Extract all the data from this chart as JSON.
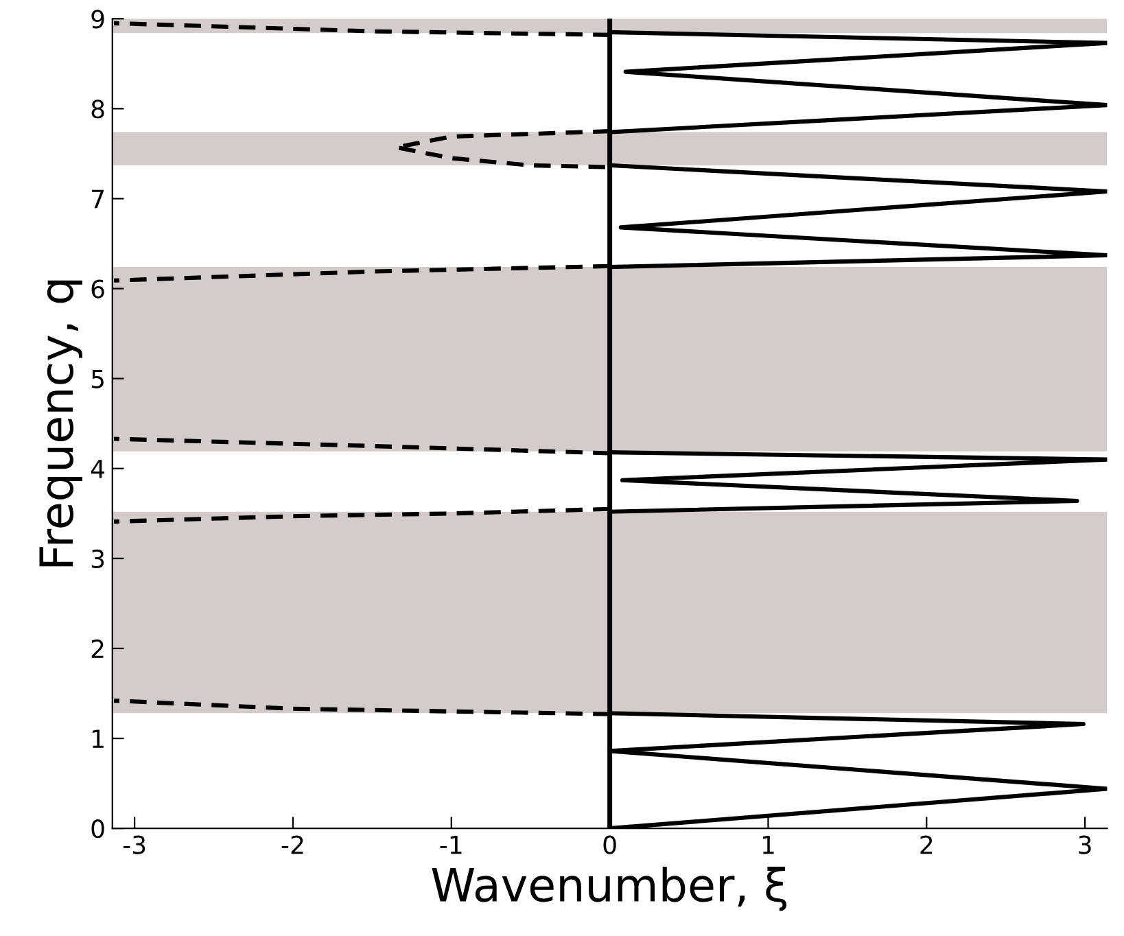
{
  "chart_data": {
    "type": "line",
    "xlabel": "Wavenumber, ξ",
    "ylabel": "Frequency, q",
    "xlim": [
      -3.14,
      3.14
    ],
    "ylim": [
      0,
      9
    ],
    "xticks": [
      -3,
      -2,
      -1,
      0,
      1,
      2,
      3
    ],
    "yticks": [
      0,
      1,
      2,
      3,
      4,
      5,
      6,
      7,
      8,
      9
    ],
    "grid": false,
    "legend": false,
    "marker": "none",
    "bands": [
      {
        "axis": "y",
        "from": 1.28,
        "to": 3.52,
        "color": "#d3ccca"
      },
      {
        "axis": "y",
        "from": 4.19,
        "to": 6.24,
        "color": "#d3ccca"
      },
      {
        "axis": "y",
        "from": 7.37,
        "to": 7.74,
        "color": "#d3ccca"
      },
      {
        "axis": "y",
        "from": 8.84,
        "to": 9.0,
        "color": "#d3ccca"
      }
    ],
    "ref_lines": [
      {
        "axis": "x",
        "value": 0,
        "color": "#000000",
        "line_style": "solid"
      }
    ],
    "series": [
      {
        "color": "#000000",
        "line_style": "solid",
        "x": [
          0,
          3.14,
          0,
          2.99,
          0
        ],
        "values": [
          0,
          0.44,
          0.86,
          1.16,
          1.28
        ]
      },
      {
        "color": "#000000",
        "line_style": "solid",
        "x": [
          0,
          2.95,
          0.08,
          3.14,
          0
        ],
        "values": [
          3.52,
          3.64,
          3.87,
          4.1,
          4.18
        ]
      },
      {
        "color": "#000000",
        "line_style": "solid",
        "x": [
          0,
          3.14,
          0.07,
          3.14,
          0
        ],
        "values": [
          6.24,
          6.37,
          6.68,
          7.08,
          7.37
        ]
      },
      {
        "color": "#000000",
        "line_style": "solid",
        "x": [
          0,
          3.14,
          0.1,
          3.14,
          0
        ],
        "values": [
          7.74,
          8.04,
          8.41,
          8.73,
          8.85
        ]
      },
      {
        "color": "#000000",
        "line_style": "dashed",
        "x": [
          0,
          -1,
          -2,
          -3.13
        ],
        "values": [
          1.27,
          1.3,
          1.33,
          1.42
        ]
      },
      {
        "color": "#000000",
        "line_style": "dashed",
        "x": [
          0,
          -1,
          -2,
          -3.13
        ],
        "values": [
          3.55,
          3.5,
          3.47,
          3.41
        ]
      },
      {
        "color": "#000000",
        "line_style": "dashed",
        "x": [
          0,
          -1.5,
          -3.13
        ],
        "values": [
          4.17,
          4.25,
          4.33
        ]
      },
      {
        "color": "#000000",
        "line_style": "dashed",
        "x": [
          0,
          -1.5,
          -3.13
        ],
        "values": [
          6.25,
          6.19,
          6.09
        ]
      },
      {
        "color": "#000000",
        "line_style": "dashed",
        "x": [
          0,
          -0.5,
          -1.0,
          -1.35,
          -1.0,
          -0.5,
          0
        ],
        "values": [
          7.75,
          7.72,
          7.69,
          7.57,
          7.45,
          7.37,
          7.35
        ]
      },
      {
        "color": "#000000",
        "line_style": "dashed",
        "x": [
          0,
          -1.5,
          -3.13
        ],
        "values": [
          8.82,
          8.86,
          8.95
        ]
      }
    ]
  }
}
